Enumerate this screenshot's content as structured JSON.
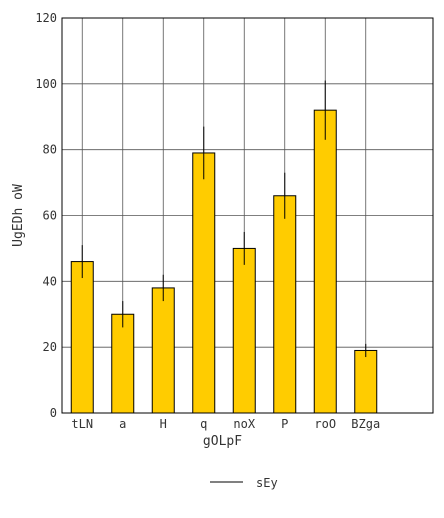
{
  "chart_data": {
    "type": "bar",
    "categories": [
      "tLN",
      "a",
      "H",
      "q",
      "noX",
      "P",
      "roO",
      "BZga"
    ],
    "series": [
      {
        "name": "sEy",
        "values": [
          46,
          30,
          38,
          79,
          50,
          66,
          92,
          19
        ],
        "error": [
          5,
          4,
          4,
          8,
          5,
          7,
          9,
          2
        ]
      }
    ],
    "xlabel": "gOLpF",
    "ylabel": "UgEDh oW",
    "ylim": [
      0,
      120
    ],
    "yticks": [
      0,
      20,
      40,
      60,
      80,
      100,
      120
    ],
    "grid": true,
    "legend_position": "bottom",
    "colors": {
      "bar": "#FFCC00",
      "bar_edge": "#000000",
      "grid": "#555555",
      "error": "#000000"
    }
  }
}
